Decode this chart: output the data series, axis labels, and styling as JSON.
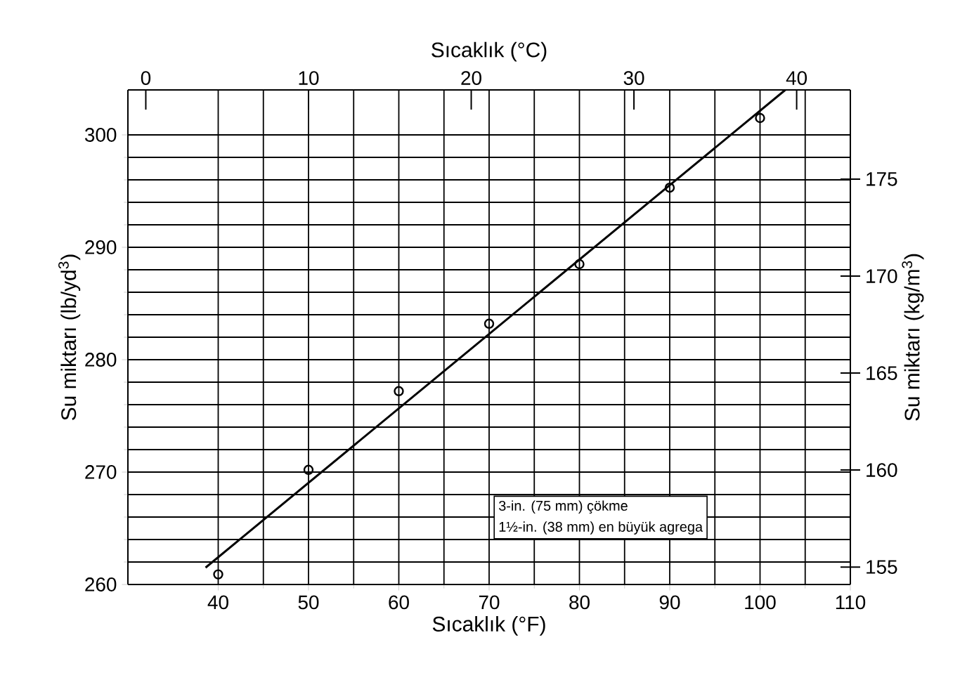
{
  "chart_data": {
    "type": "scatter",
    "xlabel": "Sıcaklık  (°F)",
    "ylabel": "Su miktarı  (lb/yd$^{3}$)",
    "x2label": "Sıcaklık (°C)",
    "y2label": "Su miktarı (kg/m$^{3}$)",
    "xlim": [
      30,
      110
    ],
    "xticks": [
      40,
      50,
      60,
      70,
      80,
      90,
      100,
      110
    ],
    "ylim": [
      260,
      304
    ],
    "yticks": [
      260,
      270,
      280,
      290,
      300
    ],
    "x2lim": [
      -1.1,
      43.3
    ],
    "x2ticks": [
      0,
      10,
      20,
      30,
      40
    ],
    "y2lim": [
      154.1,
      179.6
    ],
    "y2ticks": [
      155,
      160,
      165,
      170,
      175
    ],
    "grid": true,
    "marker": "circle",
    "annotations": [
      "3-in. (75 mm) çökme",
      "1½-in. (38 mm) en büyük agrega"
    ],
    "series": [
      {
        "color": "#000000",
        "x": [
          40,
          50,
          60,
          70,
          80,
          90,
          100
        ],
        "values": [
          260.9,
          270.2,
          277.2,
          283.2,
          288.5,
          295.3,
          301.5
        ]
      },
      {
        "type": "line",
        "color": "#000000",
        "marker": "none",
        "line_style": "solid",
        "x": [
          38.6,
          102.8
        ],
        "values": [
          261.5,
          304
        ]
      }
    ]
  }
}
